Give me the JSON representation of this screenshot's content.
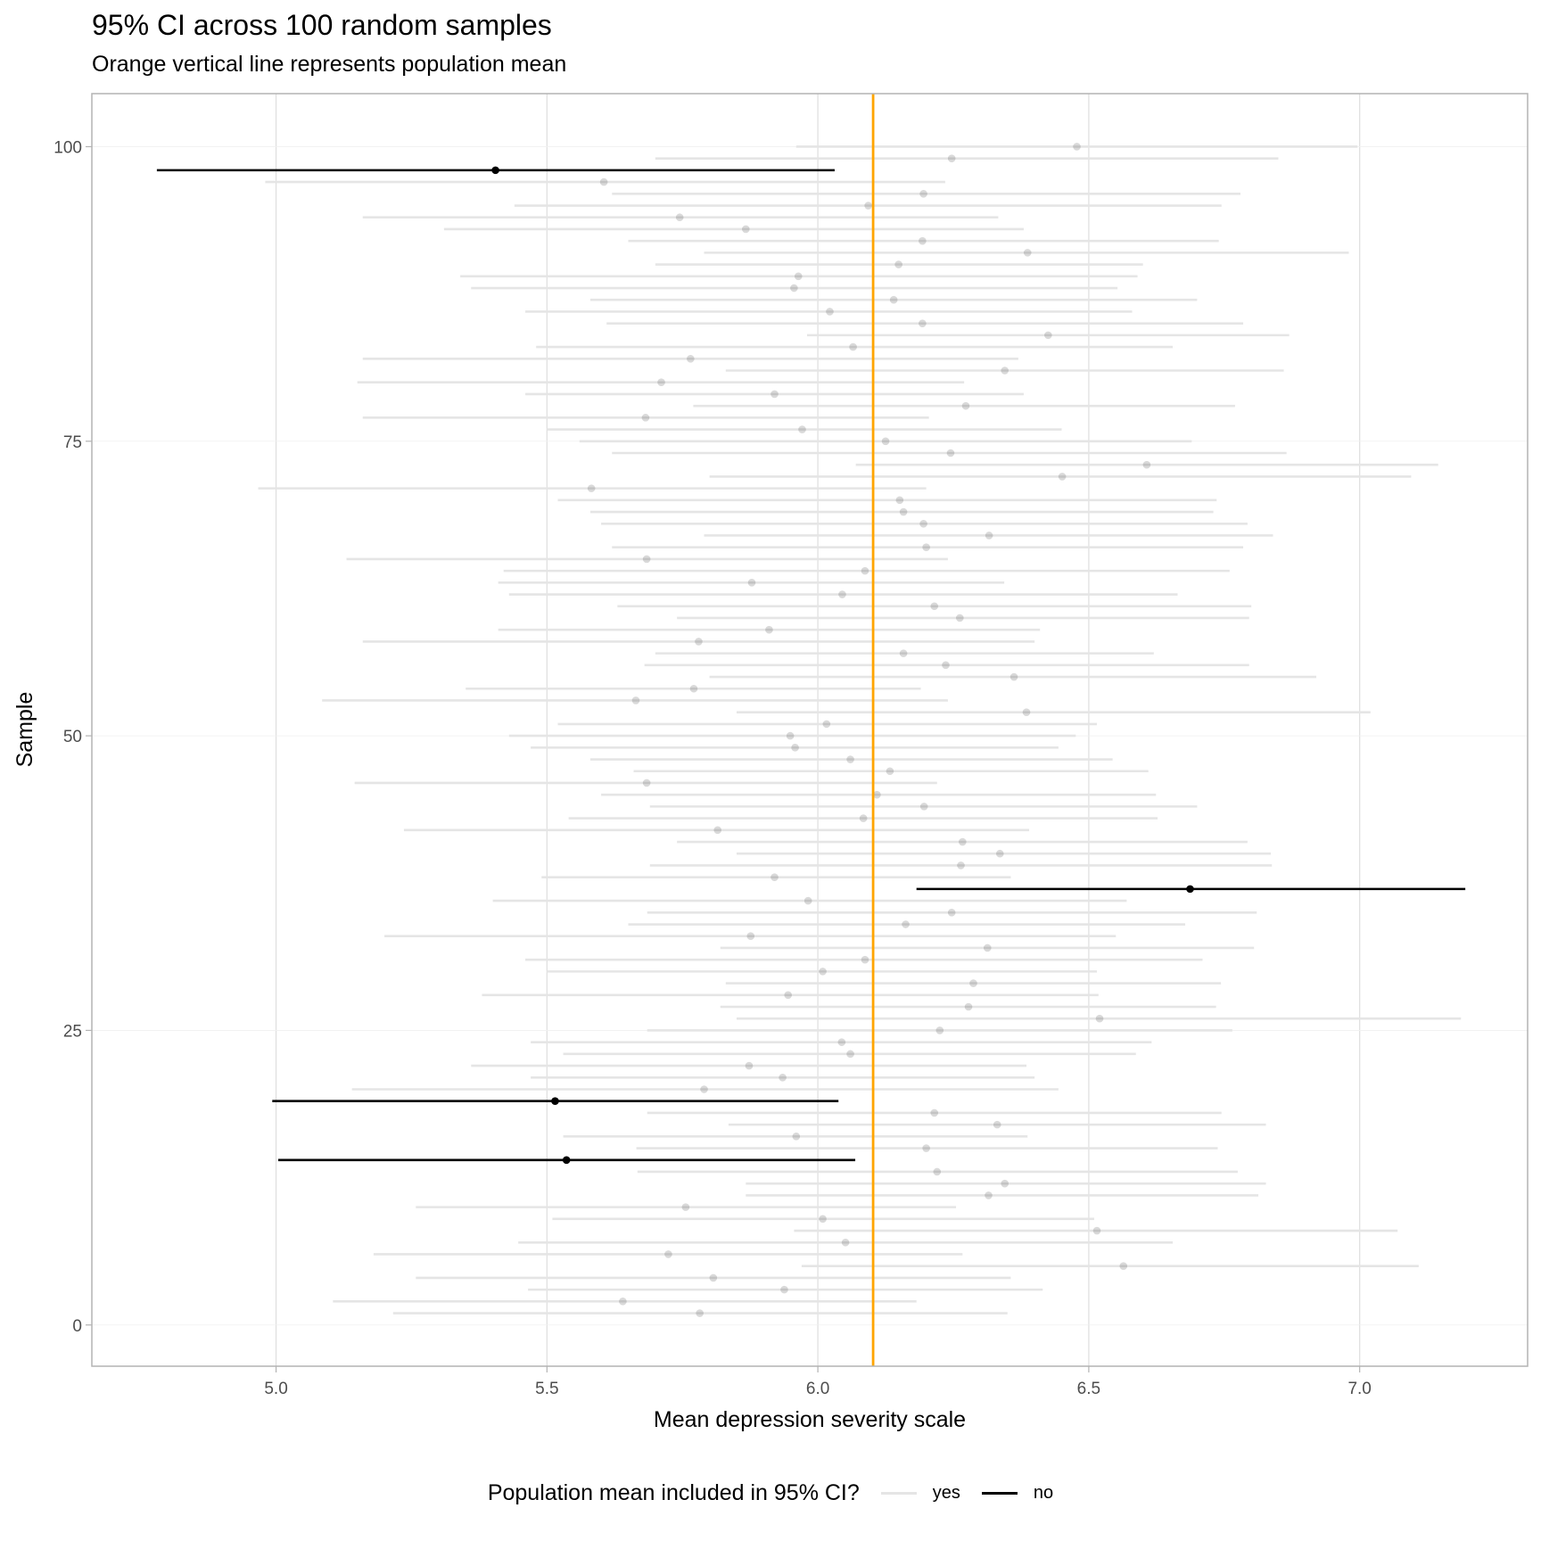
{
  "chart_data": {
    "type": "errorbar",
    "title": "95% CI across 100 random samples",
    "subtitle": "Orange vertical line represents population mean",
    "xlabel": "Mean depression severity scale",
    "ylabel": "Sample",
    "xlim": [
      4.66,
      7.31
    ],
    "ylim": [
      -3.5,
      104.5
    ],
    "x_ticks": [
      "5.0",
      "5.5",
      "6.0",
      "6.5",
      "7.0"
    ],
    "y_ticks": [
      "0",
      "25",
      "50",
      "75",
      "100"
    ],
    "grid": true,
    "population_mean": 6.102,
    "colors": {
      "yes": "#e5e5e5",
      "no": "#000000",
      "population_mean": "#ffa500"
    },
    "legend": {
      "title": "Population mean included in 95% CI?",
      "entries": [
        "yes",
        "no"
      ],
      "position": "bottom"
    },
    "columns": [
      "sample",
      "mean",
      "lower",
      "upper",
      "included"
    ],
    "samples": [
      [
        1,
        5.782,
        5.216,
        6.35,
        "yes"
      ],
      [
        2,
        5.64,
        5.105,
        6.182,
        "yes"
      ],
      [
        3,
        5.938,
        5.465,
        6.415,
        "yes"
      ],
      [
        4,
        5.807,
        5.258,
        6.356,
        "yes"
      ],
      [
        5,
        6.564,
        5.97,
        7.109,
        "yes"
      ],
      [
        6,
        5.724,
        5.18,
        6.267,
        "yes"
      ],
      [
        7,
        6.051,
        5.447,
        6.655,
        "yes"
      ],
      [
        8,
        6.515,
        5.956,
        7.07,
        "yes"
      ],
      [
        9,
        6.009,
        5.51,
        6.51,
        "yes"
      ],
      [
        10,
        5.756,
        5.258,
        6.255,
        "yes"
      ],
      [
        11,
        6.315,
        5.867,
        6.813,
        "yes"
      ],
      [
        12,
        6.345,
        5.867,
        6.827,
        "yes"
      ],
      [
        13,
        6.22,
        5.667,
        6.775,
        "yes"
      ],
      [
        14,
        5.536,
        5.004,
        6.069,
        "no"
      ],
      [
        15,
        6.2,
        5.665,
        6.738,
        "yes"
      ],
      [
        16,
        5.96,
        5.53,
        6.387,
        "yes"
      ],
      [
        17,
        6.331,
        5.835,
        6.827,
        "yes"
      ],
      [
        18,
        6.215,
        5.685,
        6.745,
        "yes"
      ],
      [
        19,
        5.515,
        4.993,
        6.038,
        "no"
      ],
      [
        20,
        5.79,
        5.14,
        6.444,
        "yes"
      ],
      [
        21,
        5.935,
        5.47,
        6.4,
        "yes"
      ],
      [
        22,
        5.873,
        5.36,
        6.385,
        "yes"
      ],
      [
        23,
        6.06,
        5.53,
        6.587,
        "yes"
      ],
      [
        24,
        6.044,
        5.47,
        6.616,
        "yes"
      ],
      [
        25,
        6.225,
        5.685,
        6.765,
        "yes"
      ],
      [
        26,
        6.52,
        5.85,
        7.187,
        "yes"
      ],
      [
        27,
        6.278,
        5.82,
        6.735,
        "yes"
      ],
      [
        28,
        5.945,
        5.38,
        6.518,
        "yes"
      ],
      [
        29,
        6.287,
        5.83,
        6.744,
        "yes"
      ],
      [
        30,
        6.009,
        5.5,
        6.515,
        "yes"
      ],
      [
        31,
        6.087,
        5.46,
        6.71,
        "yes"
      ],
      [
        32,
        6.313,
        5.82,
        6.805,
        "yes"
      ],
      [
        33,
        5.876,
        5.2,
        6.55,
        "yes"
      ],
      [
        34,
        6.162,
        5.65,
        6.678,
        "yes"
      ],
      [
        35,
        6.247,
        5.685,
        6.81,
        "yes"
      ],
      [
        36,
        5.982,
        5.4,
        6.57,
        "yes"
      ],
      [
        37,
        6.687,
        6.182,
        7.195,
        "no"
      ],
      [
        38,
        5.92,
        5.49,
        6.356,
        "yes"
      ],
      [
        39,
        6.264,
        5.69,
        6.838,
        "yes"
      ],
      [
        40,
        6.336,
        5.85,
        6.836,
        "yes"
      ],
      [
        41,
        6.267,
        5.74,
        6.793,
        "yes"
      ],
      [
        42,
        5.815,
        5.236,
        6.39,
        "yes"
      ],
      [
        43,
        6.084,
        5.54,
        6.627,
        "yes"
      ],
      [
        44,
        6.196,
        5.69,
        6.7,
        "yes"
      ],
      [
        45,
        6.109,
        5.6,
        6.624,
        "yes"
      ],
      [
        46,
        5.684,
        5.145,
        6.22,
        "yes"
      ],
      [
        47,
        6.133,
        5.66,
        6.61,
        "yes"
      ],
      [
        48,
        6.06,
        5.58,
        6.544,
        "yes"
      ],
      [
        49,
        5.958,
        5.47,
        6.444,
        "yes"
      ],
      [
        50,
        5.949,
        5.43,
        6.476,
        "yes"
      ],
      [
        51,
        6.016,
        5.52,
        6.515,
        "yes"
      ],
      [
        52,
        6.385,
        5.85,
        7.02,
        "yes"
      ],
      [
        53,
        5.664,
        5.085,
        6.24,
        "yes"
      ],
      [
        54,
        5.771,
        5.35,
        6.19,
        "yes"
      ],
      [
        55,
        6.362,
        5.8,
        6.92,
        "yes"
      ],
      [
        56,
        6.236,
        5.68,
        6.796,
        "yes"
      ],
      [
        57,
        6.158,
        5.7,
        6.62,
        "yes"
      ],
      [
        58,
        5.78,
        5.16,
        6.4,
        "yes"
      ],
      [
        59,
        5.91,
        5.41,
        6.41,
        "yes"
      ],
      [
        60,
        6.262,
        5.74,
        6.796,
        "yes"
      ],
      [
        61,
        6.215,
        5.63,
        6.8,
        "yes"
      ],
      [
        62,
        6.045,
        5.43,
        6.664,
        "yes"
      ],
      [
        63,
        5.878,
        5.41,
        6.344,
        "yes"
      ],
      [
        64,
        6.087,
        5.42,
        6.76,
        "yes"
      ],
      [
        65,
        5.684,
        5.13,
        6.24,
        "yes"
      ],
      [
        66,
        6.2,
        5.62,
        6.785,
        "yes"
      ],
      [
        67,
        6.316,
        5.79,
        6.84,
        "yes"
      ],
      [
        68,
        6.195,
        5.6,
        6.793,
        "yes"
      ],
      [
        69,
        6.158,
        5.58,
        6.73,
        "yes"
      ],
      [
        70,
        6.151,
        5.52,
        6.736,
        "yes"
      ],
      [
        71,
        5.582,
        4.967,
        6.2,
        "yes"
      ],
      [
        72,
        6.451,
        5.8,
        7.095,
        "yes"
      ],
      [
        73,
        6.607,
        6.07,
        7.145,
        "yes"
      ],
      [
        74,
        6.245,
        5.62,
        6.865,
        "yes"
      ],
      [
        75,
        6.125,
        5.56,
        6.69,
        "yes"
      ],
      [
        76,
        5.971,
        5.5,
        6.45,
        "yes"
      ],
      [
        77,
        5.682,
        5.16,
        6.205,
        "yes"
      ],
      [
        78,
        6.273,
        5.77,
        6.77,
        "yes"
      ],
      [
        79,
        5.92,
        5.46,
        6.38,
        "yes"
      ],
      [
        80,
        5.711,
        5.15,
        6.27,
        "yes"
      ],
      [
        81,
        6.345,
        5.83,
        6.86,
        "yes"
      ],
      [
        82,
        5.765,
        5.16,
        6.37,
        "yes"
      ],
      [
        83,
        6.065,
        5.48,
        6.655,
        "yes"
      ],
      [
        84,
        6.425,
        5.98,
        6.87,
        "yes"
      ],
      [
        85,
        6.193,
        5.61,
        6.785,
        "yes"
      ],
      [
        86,
        6.022,
        5.46,
        6.58,
        "yes"
      ],
      [
        87,
        6.14,
        5.58,
        6.7,
        "yes"
      ],
      [
        88,
        5.956,
        5.36,
        6.553,
        "yes"
      ],
      [
        89,
        5.964,
        5.34,
        6.59,
        "yes"
      ],
      [
        90,
        6.149,
        5.7,
        6.6,
        "yes"
      ],
      [
        91,
        6.387,
        5.79,
        6.98,
        "yes"
      ],
      [
        92,
        6.193,
        5.65,
        6.74,
        "yes"
      ],
      [
        93,
        5.867,
        5.31,
        6.38,
        "yes"
      ],
      [
        94,
        5.745,
        5.16,
        6.333,
        "yes"
      ],
      [
        95,
        6.093,
        5.44,
        6.745,
        "yes"
      ],
      [
        96,
        6.195,
        5.62,
        6.78,
        "yes"
      ],
      [
        97,
        5.605,
        4.98,
        6.235,
        "yes"
      ],
      [
        98,
        5.405,
        4.78,
        6.031,
        "no"
      ],
      [
        99,
        6.247,
        5.7,
        6.85,
        "yes"
      ],
      [
        100,
        6.478,
        5.96,
        6.996,
        "yes"
      ]
    ]
  }
}
